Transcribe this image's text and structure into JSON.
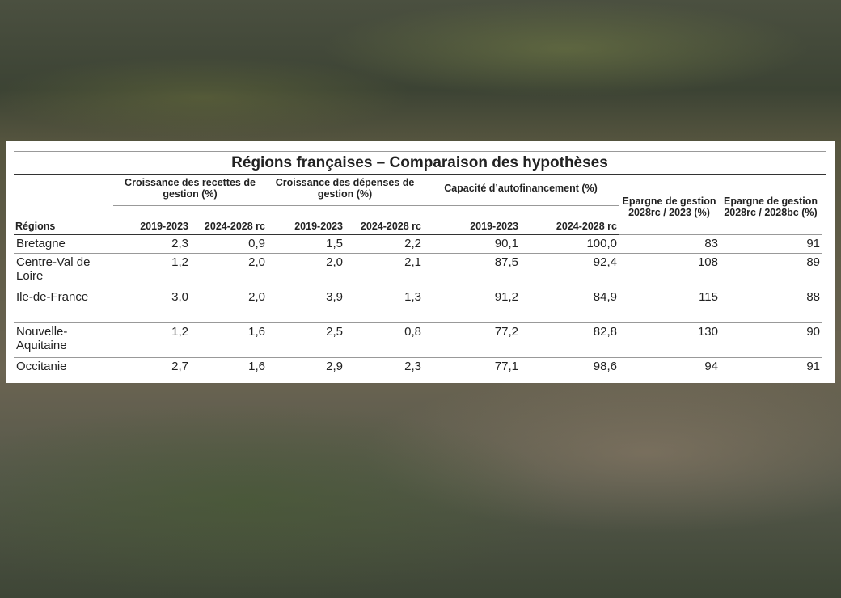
{
  "title": "Régions françaises – Comparaison des hypothèses",
  "table": {
    "region_header": "Régions",
    "groups": [
      "Croissance des recettes de gestion (%)",
      "Croissance des dépenses de gestion (%)",
      "Capacité d’autofinancement (%)"
    ],
    "sub_headers": [
      "2019-2023",
      "2024-2028 rc",
      "2019-2023",
      "2024-2028 rc",
      "2019-2023",
      "2024-2028 rc"
    ],
    "extra_headers": [
      "Epargne de gestion 2028rc / 2023 (%)",
      "Epargne de gestion 2028rc / 2028bc (%)"
    ],
    "rows": [
      [
        "Bretagne",
        "2,3",
        "0,9",
        "1,5",
        "2,2",
        "90,1",
        "100,0",
        "83",
        "91"
      ],
      [
        "Centre-Val de Loire",
        "1,2",
        "2,0",
        "2,0",
        "2,1",
        "87,5",
        "92,4",
        "108",
        "89"
      ],
      [
        "Ile-de-France",
        "3,0",
        "2,0",
        "3,9",
        "1,3",
        "91,2",
        "84,9",
        "115",
        "88"
      ],
      [
        "Nouvelle-Aquitaine",
        "1,2",
        "1,6",
        "2,5",
        "0,8",
        "77,2",
        "82,8",
        "130",
        "90"
      ],
      [
        "Occitanie",
        "2,7",
        "1,6",
        "2,9",
        "2,3",
        "77,1",
        "98,6",
        "94",
        "91"
      ]
    ]
  }
}
